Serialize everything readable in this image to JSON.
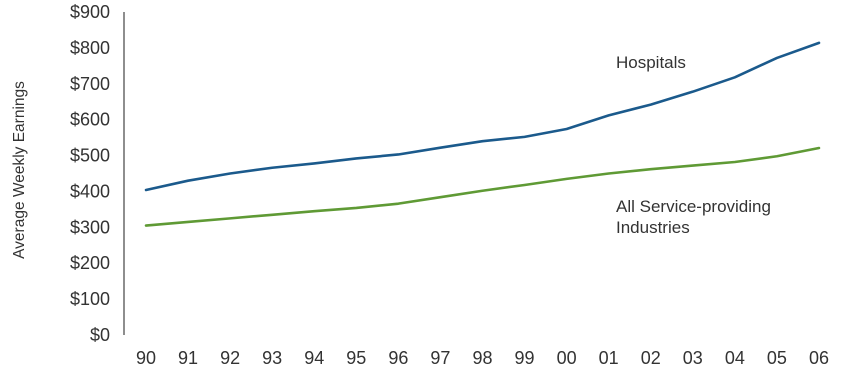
{
  "chart_data": {
    "type": "line",
    "ylabel": "Average Weekly Earnings",
    "xlabel": "",
    "ylim": [
      0,
      900
    ],
    "y_ticks": [
      "$0",
      "$100",
      "$200",
      "$300",
      "$400",
      "$500",
      "$600",
      "$700",
      "$800",
      "$900"
    ],
    "categories": [
      "90",
      "91",
      "92",
      "93",
      "94",
      "95",
      "96",
      "97",
      "98",
      "99",
      "00",
      "01",
      "02",
      "03",
      "04",
      "05",
      "06"
    ],
    "grid": false,
    "series": [
      {
        "name": "Hospitals",
        "color": "#1b5a8c",
        "values": [
          404,
          430,
          450,
          466,
          478,
          492,
          503,
          522,
          540,
          552,
          574,
          612,
          642,
          678,
          718,
          772,
          814
        ]
      },
      {
        "name": "All Service-providing Industries",
        "color": "#5f9a35",
        "values": [
          305,
          315,
          325,
          335,
          345,
          354,
          366,
          384,
          402,
          418,
          435,
          450,
          462,
          472,
          482,
          498,
          521
        ]
      }
    ],
    "series_labels": {
      "hospitals": "Hospitals",
      "service_line1": "All Service-providing",
      "service_line2": "Industries"
    }
  }
}
